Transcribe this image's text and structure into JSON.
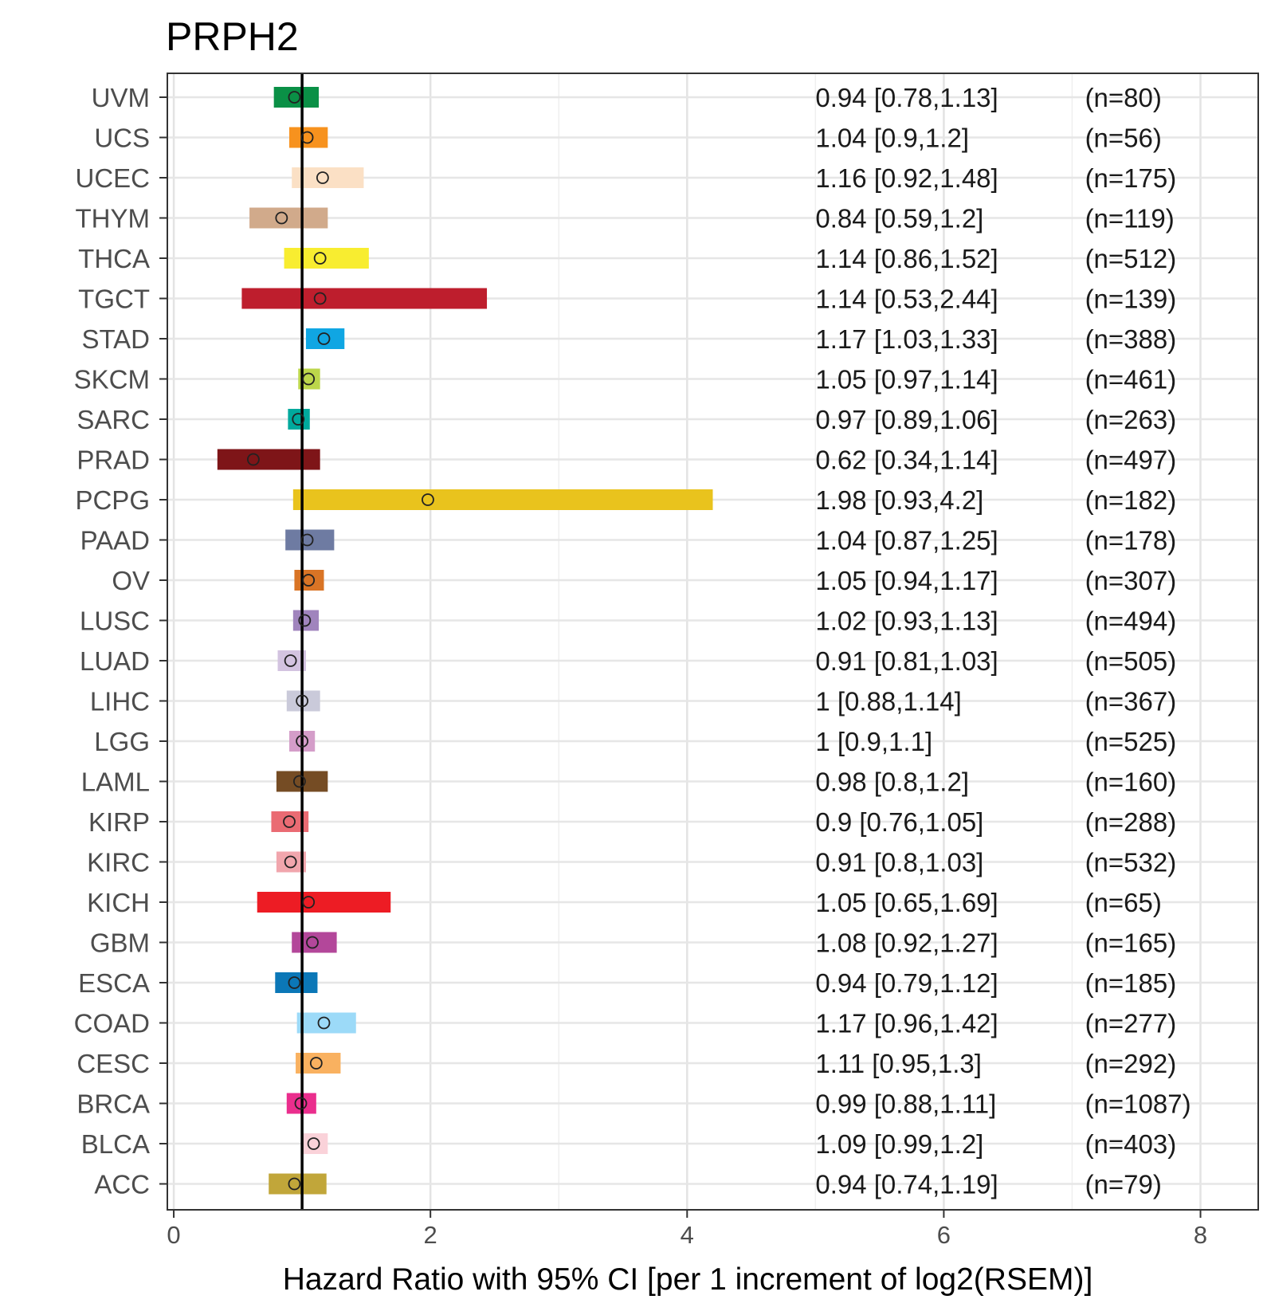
{
  "chart_data": {
    "type": "forest",
    "title": "PRPH2",
    "xlabel": "Hazard Ratio with 95% CI [per 1 increment of log2(RSEM)]",
    "xlim": [
      -0.05,
      8.45
    ],
    "xticks": [
      0,
      2,
      4,
      6,
      8
    ],
    "reference_line": 1,
    "rows": [
      {
        "label": "UVM",
        "hr": 0.94,
        "lo": 0.78,
        "hi": 1.13,
        "text": "0.94 [0.78,1.13]",
        "n": "(n=80)",
        "color": "#0a9046"
      },
      {
        "label": "UCS",
        "hr": 1.04,
        "lo": 0.9,
        "hi": 1.2,
        "text": "1.04 [0.9,1.2]",
        "n": "(n=56)",
        "color": "#f7921e"
      },
      {
        "label": "UCEC",
        "hr": 1.16,
        "lo": 0.92,
        "hi": 1.48,
        "text": "1.16 [0.92,1.48]",
        "n": "(n=175)",
        "color": "#fbe0c5"
      },
      {
        "label": "THYM",
        "hr": 0.84,
        "lo": 0.59,
        "hi": 1.2,
        "text": "0.84 [0.59,1.2]",
        "n": "(n=119)",
        "color": "#d1aa8b"
      },
      {
        "label": "THCA",
        "hr": 1.14,
        "lo": 0.86,
        "hi": 1.52,
        "text": "1.14 [0.86,1.52]",
        "n": "(n=512)",
        "color": "#f8ed30"
      },
      {
        "label": "TGCT",
        "hr": 1.14,
        "lo": 0.53,
        "hi": 2.44,
        "text": "1.14 [0.53,2.44]",
        "n": "(n=139)",
        "color": "#be1e2d"
      },
      {
        "label": "STAD",
        "hr": 1.17,
        "lo": 1.03,
        "hi": 1.33,
        "text": "1.17 [1.03,1.33]",
        "n": "(n=388)",
        "color": "#10a6e3"
      },
      {
        "label": "SKCM",
        "hr": 1.05,
        "lo": 0.97,
        "hi": 1.14,
        "text": "1.05 [0.97,1.14]",
        "n": "(n=461)",
        "color": "#bcd64b"
      },
      {
        "label": "SARC",
        "hr": 0.97,
        "lo": 0.89,
        "hi": 1.06,
        "text": "0.97 [0.89,1.06]",
        "n": "(n=263)",
        "color": "#00a99d"
      },
      {
        "label": "PRAD",
        "hr": 0.62,
        "lo": 0.34,
        "hi": 1.14,
        "text": "0.62 [0.34,1.14]",
        "n": "(n=497)",
        "color": "#7e1518"
      },
      {
        "label": "PCPG",
        "hr": 1.98,
        "lo": 0.93,
        "hi": 4.2,
        "text": "1.98 [0.93,4.2]",
        "n": "(n=182)",
        "color": "#e9c31d"
      },
      {
        "label": "PAAD",
        "hr": 1.04,
        "lo": 0.87,
        "hi": 1.25,
        "text": "1.04 [0.87,1.25]",
        "n": "(n=178)",
        "color": "#6e7ba2"
      },
      {
        "label": "OV",
        "hr": 1.05,
        "lo": 0.94,
        "hi": 1.17,
        "text": "1.05 [0.94,1.17]",
        "n": "(n=307)",
        "color": "#d97425"
      },
      {
        "label": "LUSC",
        "hr": 1.02,
        "lo": 0.93,
        "hi": 1.13,
        "text": "1.02 [0.93,1.13]",
        "n": "(n=494)",
        "color": "#a084bd"
      },
      {
        "label": "LUAD",
        "hr": 0.91,
        "lo": 0.81,
        "hi": 1.03,
        "text": "0.91 [0.81,1.03]",
        "n": "(n=505)",
        "color": "#d3c3e0"
      },
      {
        "label": "LIHC",
        "hr": 1,
        "lo": 0.88,
        "hi": 1.14,
        "text": "1 [0.88,1.14]",
        "n": "(n=367)",
        "color": "#cacada"
      },
      {
        "label": "LGG",
        "hr": 1,
        "lo": 0.9,
        "hi": 1.1,
        "text": "1 [0.9,1.1]",
        "n": "(n=525)",
        "color": "#d49dc9"
      },
      {
        "label": "LAML",
        "hr": 0.98,
        "lo": 0.8,
        "hi": 1.2,
        "text": "0.98 [0.8,1.2]",
        "n": "(n=160)",
        "color": "#754c24"
      },
      {
        "label": "KIRP",
        "hr": 0.9,
        "lo": 0.76,
        "hi": 1.05,
        "text": "0.9 [0.76,1.05]",
        "n": "(n=288)",
        "color": "#ea6b73"
      },
      {
        "label": "KIRC",
        "hr": 0.91,
        "lo": 0.8,
        "hi": 1.03,
        "text": "0.91 [0.8,1.03]",
        "n": "(n=532)",
        "color": "#f1a6ad"
      },
      {
        "label": "KICH",
        "hr": 1.05,
        "lo": 0.65,
        "hi": 1.69,
        "text": "1.05 [0.65,1.69]",
        "n": "(n=65)",
        "color": "#ed1c24"
      },
      {
        "label": "GBM",
        "hr": 1.08,
        "lo": 0.92,
        "hi": 1.27,
        "text": "1.08 [0.92,1.27]",
        "n": "(n=165)",
        "color": "#b3479a"
      },
      {
        "label": "ESCA",
        "hr": 0.94,
        "lo": 0.79,
        "hi": 1.12,
        "text": "0.94 [0.79,1.12]",
        "n": "(n=185)",
        "color": "#0b77b7"
      },
      {
        "label": "COAD",
        "hr": 1.17,
        "lo": 0.96,
        "hi": 1.42,
        "text": "1.17 [0.96,1.42]",
        "n": "(n=277)",
        "color": "#9cdaf8"
      },
      {
        "label": "CESC",
        "hr": 1.11,
        "lo": 0.95,
        "hi": 1.3,
        "text": "1.11 [0.95,1.3]",
        "n": "(n=292)",
        "color": "#f9b160"
      },
      {
        "label": "BRCA",
        "hr": 0.99,
        "lo": 0.88,
        "hi": 1.11,
        "text": "0.99 [0.88,1.11]",
        "n": "(n=1087)",
        "color": "#ea2e8d"
      },
      {
        "label": "BLCA",
        "hr": 1.09,
        "lo": 0.99,
        "hi": 1.2,
        "text": "1.09 [0.99,1.2]",
        "n": "(n=403)",
        "color": "#fad2d9"
      },
      {
        "label": "ACC",
        "hr": 0.94,
        "lo": 0.74,
        "hi": 1.19,
        "text": "0.94 [0.74,1.19]",
        "n": "(n=79)",
        "color": "#c1a63a"
      }
    ]
  }
}
